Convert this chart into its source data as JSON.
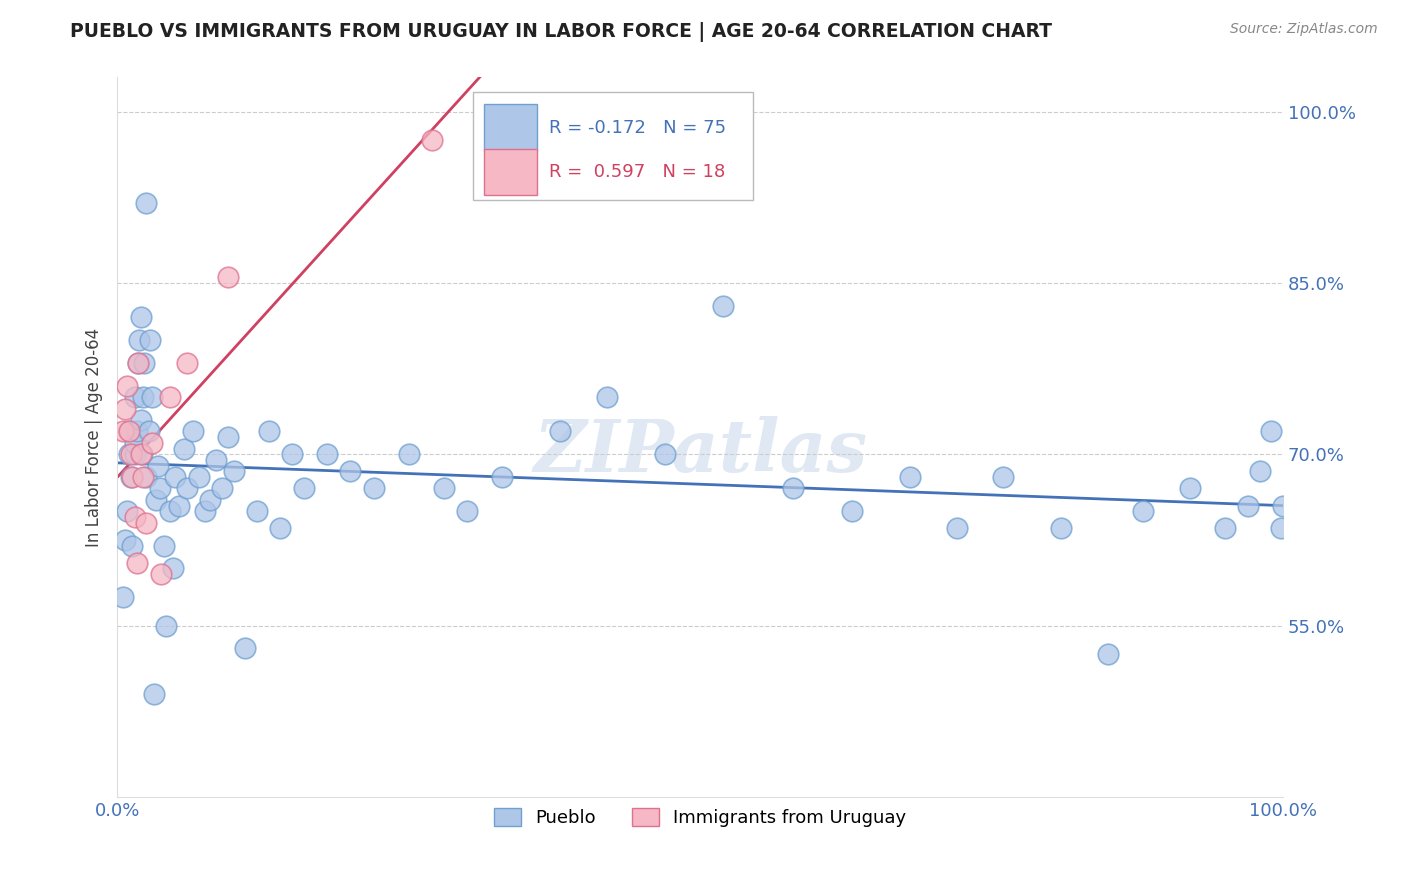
{
  "title": "PUEBLO VS IMMIGRANTS FROM URUGUAY IN LABOR FORCE | AGE 20-64 CORRELATION CHART",
  "source": "Source: ZipAtlas.com",
  "ylabel": "In Labor Force | Age 20-64",
  "xlim": [
    0.0,
    1.0
  ],
  "ylim": [
    0.4,
    1.03
  ],
  "yticks": [
    0.55,
    0.7,
    0.85,
    1.0
  ],
  "ytick_labels": [
    "55.0%",
    "70.0%",
    "85.0%",
    "100.0%"
  ],
  "xtick_labels": [
    "0.0%",
    "100.0%"
  ],
  "watermark": "ZIPatlas",
  "legend_pueblo_r": "-0.172",
  "legend_pueblo_n": "75",
  "legend_uruguay_r": "0.597",
  "legend_uruguay_n": "18",
  "pueblo_color": "#aec6e8",
  "uruguay_color": "#f5b8c4",
  "pueblo_edge_color": "#6fa0d0",
  "uruguay_edge_color": "#e07090",
  "pueblo_line_color": "#4472b8",
  "uruguay_line_color": "#d04060",
  "background_color": "#ffffff",
  "grid_color": "#cccccc",
  "pueblo_x": [
    0.005,
    0.007,
    0.008,
    0.01,
    0.01,
    0.012,
    0.013,
    0.015,
    0.015,
    0.015,
    0.017,
    0.018,
    0.019,
    0.02,
    0.02,
    0.021,
    0.022,
    0.023,
    0.025,
    0.025,
    0.027,
    0.028,
    0.03,
    0.032,
    0.033,
    0.035,
    0.037,
    0.04,
    0.042,
    0.045,
    0.048,
    0.05,
    0.053,
    0.057,
    0.06,
    0.065,
    0.07,
    0.075,
    0.08,
    0.085,
    0.09,
    0.095,
    0.1,
    0.11,
    0.12,
    0.13,
    0.14,
    0.15,
    0.16,
    0.18,
    0.2,
    0.22,
    0.25,
    0.28,
    0.3,
    0.33,
    0.38,
    0.42,
    0.47,
    0.52,
    0.58,
    0.63,
    0.68,
    0.72,
    0.76,
    0.81,
    0.85,
    0.88,
    0.92,
    0.95,
    0.97,
    0.98,
    0.99,
    0.998,
    1.0
  ],
  "pueblo_y": [
    0.575,
    0.625,
    0.65,
    0.7,
    0.72,
    0.68,
    0.62,
    0.7,
    0.75,
    0.71,
    0.72,
    0.78,
    0.8,
    0.82,
    0.73,
    0.7,
    0.75,
    0.78,
    0.92,
    0.68,
    0.72,
    0.8,
    0.75,
    0.49,
    0.66,
    0.69,
    0.67,
    0.62,
    0.55,
    0.65,
    0.6,
    0.68,
    0.655,
    0.705,
    0.67,
    0.72,
    0.68,
    0.65,
    0.66,
    0.695,
    0.67,
    0.715,
    0.685,
    0.53,
    0.65,
    0.72,
    0.635,
    0.7,
    0.67,
    0.7,
    0.685,
    0.67,
    0.7,
    0.67,
    0.65,
    0.68,
    0.72,
    0.75,
    0.7,
    0.83,
    0.67,
    0.65,
    0.68,
    0.635,
    0.68,
    0.635,
    0.525,
    0.65,
    0.67,
    0.635,
    0.655,
    0.685,
    0.72,
    0.635,
    0.655
  ],
  "uruguay_x": [
    0.005,
    0.007,
    0.008,
    0.01,
    0.012,
    0.013,
    0.015,
    0.017,
    0.018,
    0.02,
    0.022,
    0.025,
    0.03,
    0.038,
    0.045,
    0.06,
    0.095,
    0.27
  ],
  "uruguay_y": [
    0.72,
    0.74,
    0.76,
    0.72,
    0.7,
    0.68,
    0.645,
    0.605,
    0.78,
    0.7,
    0.68,
    0.64,
    0.71,
    0.595,
    0.75,
    0.78,
    0.855,
    0.975
  ]
}
